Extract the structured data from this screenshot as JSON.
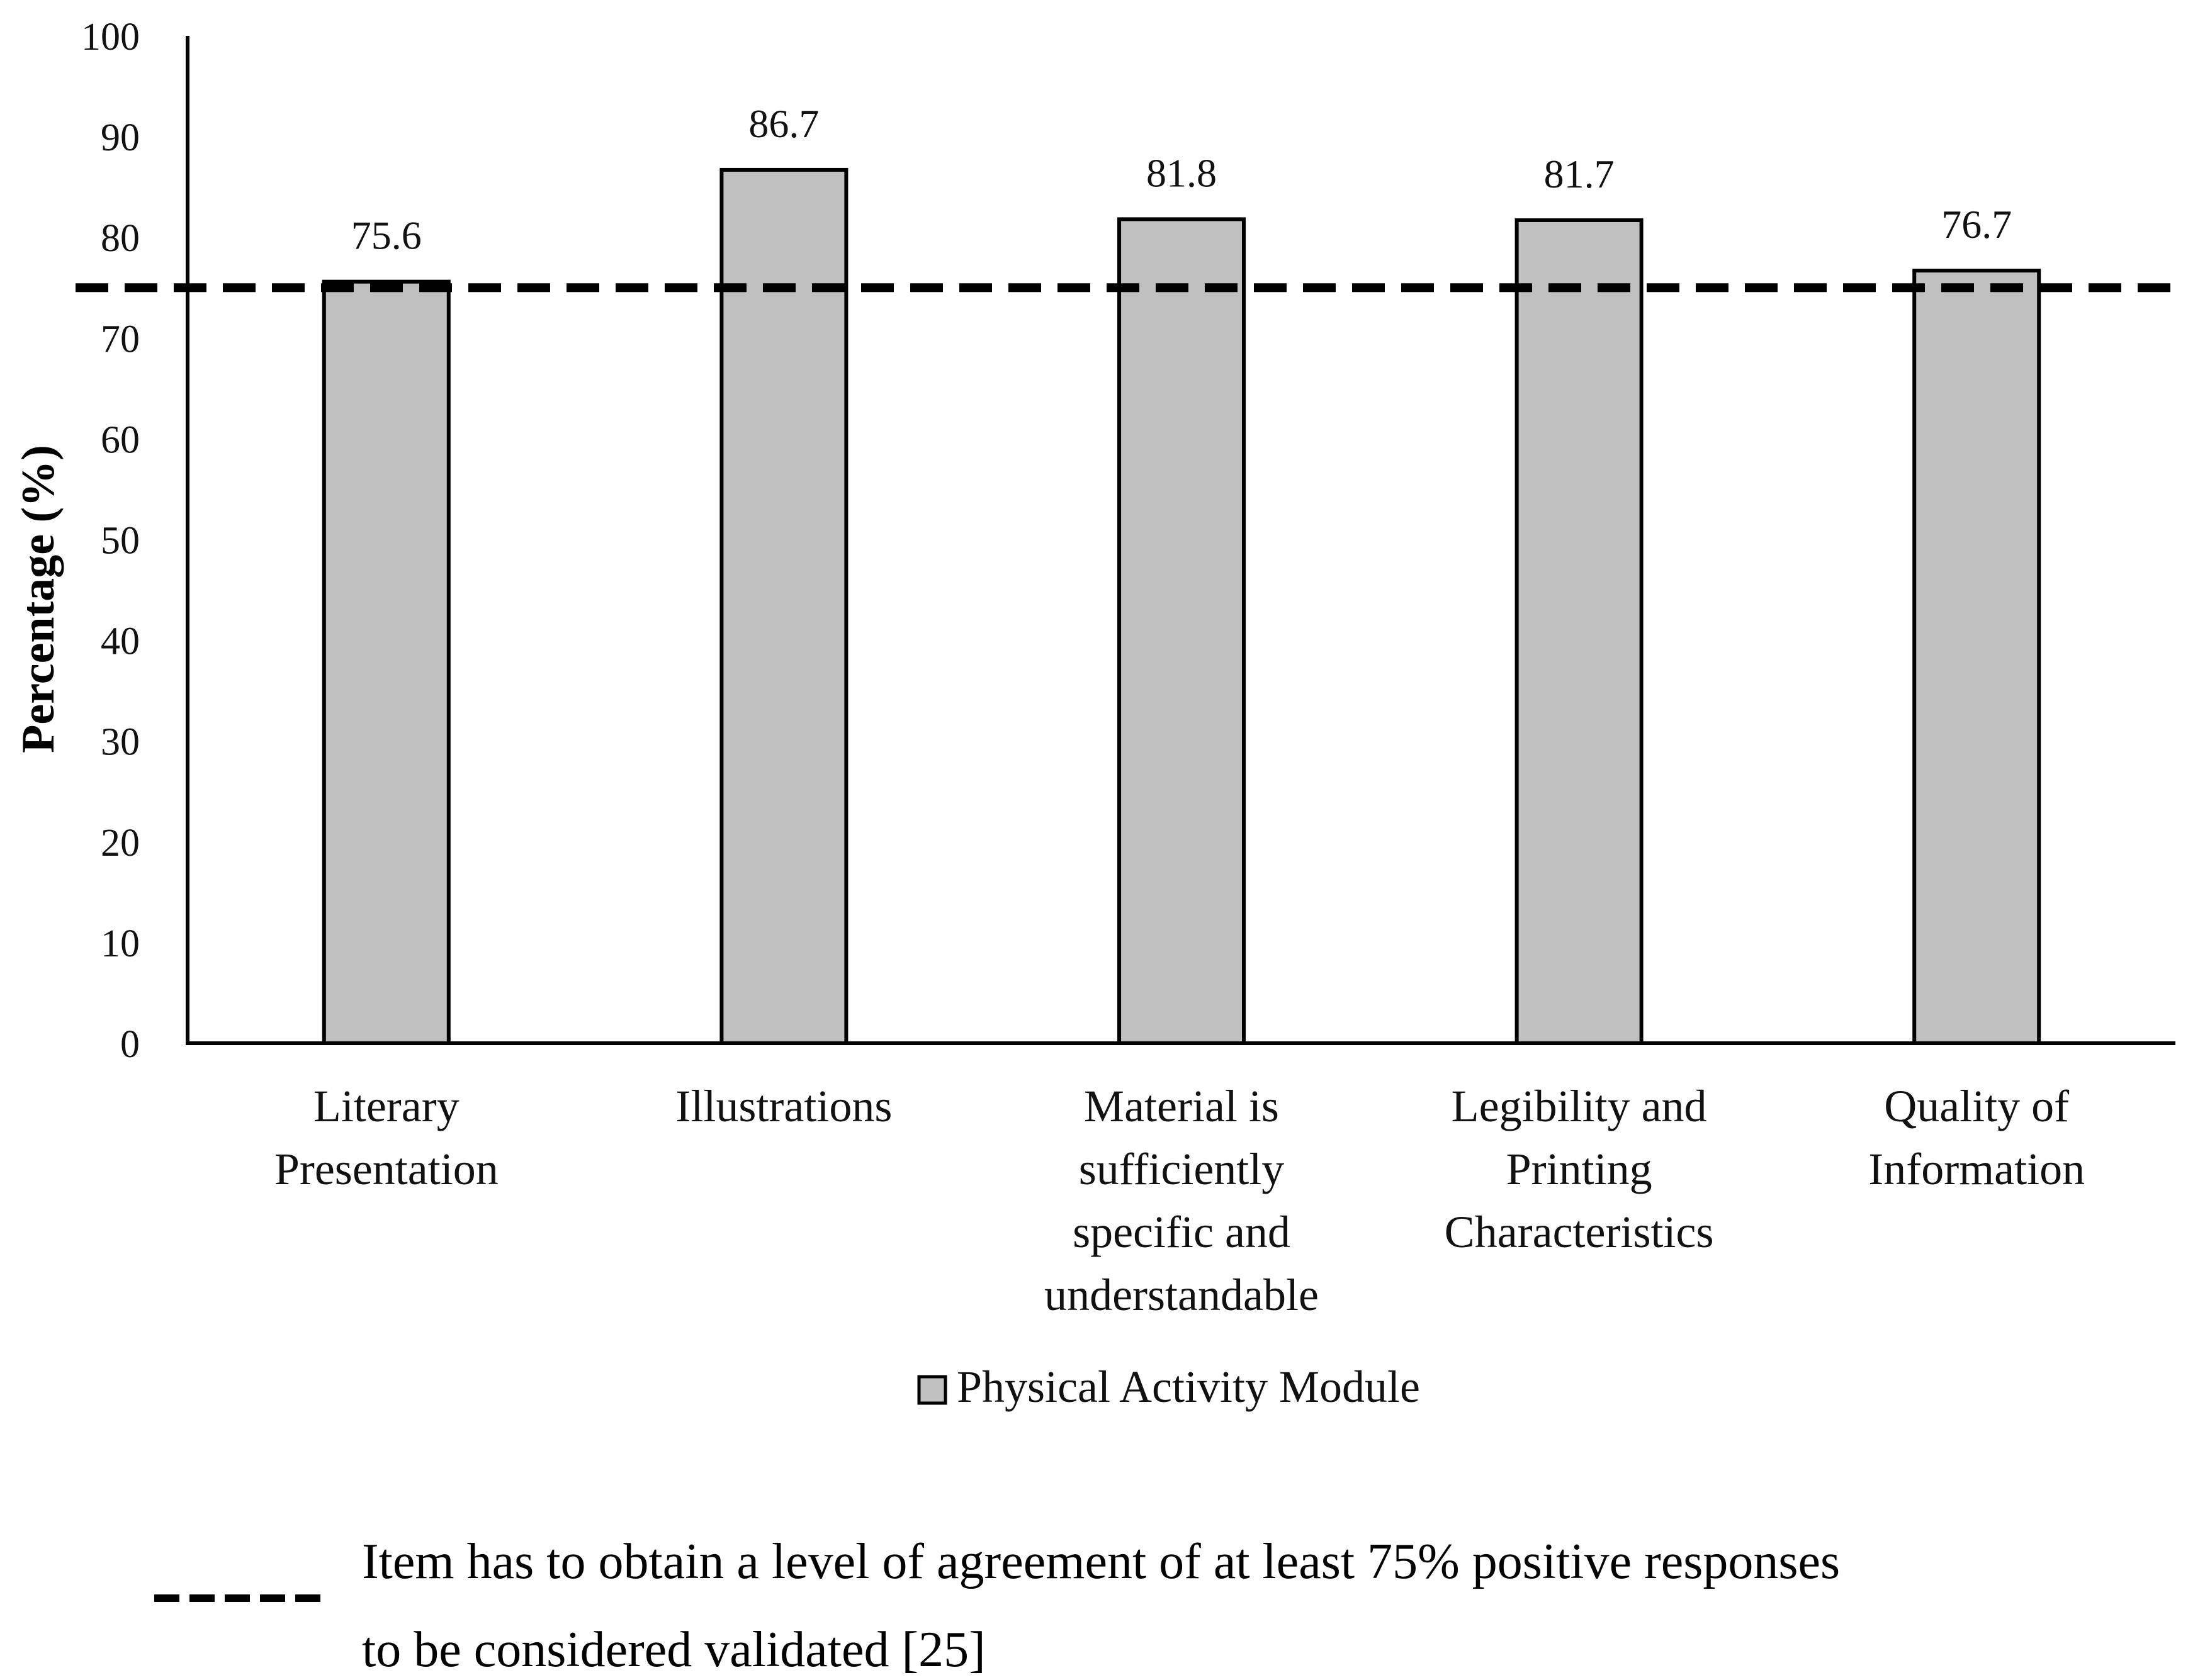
{
  "chart_data": {
    "type": "bar",
    "categories": [
      [
        "Literary",
        "Presentation"
      ],
      [
        "Illustrations"
      ],
      [
        "Material is",
        "sufficiently",
        "specific and",
        "understandable"
      ],
      [
        "Legibility and",
        "Printing",
        "Characteristics"
      ],
      [
        "Quality of",
        "Information"
      ]
    ],
    "series": [
      {
        "name": "Physical Activity Module",
        "values": [
          75.6,
          86.7,
          81.8,
          81.7,
          76.7
        ],
        "color": "#c0c0c0"
      }
    ],
    "data_labels": [
      "75.6",
      "86.7",
      "81.8",
      "81.7",
      "76.7"
    ],
    "ylabel": "Percentage (%)",
    "ylim": [
      0,
      100
    ],
    "yticks": [
      "0",
      "10",
      "20",
      "30",
      "40",
      "50",
      "60",
      "70",
      "80",
      "90",
      "100"
    ],
    "reference_line": {
      "value": 75,
      "style": "dashed"
    },
    "legend_position": "bottom",
    "note": {
      "lines": [
        "Item has to obtain a level of agreement of at least 75% positive responses",
        "to be considered validated [25]"
      ]
    },
    "grid": false
  }
}
